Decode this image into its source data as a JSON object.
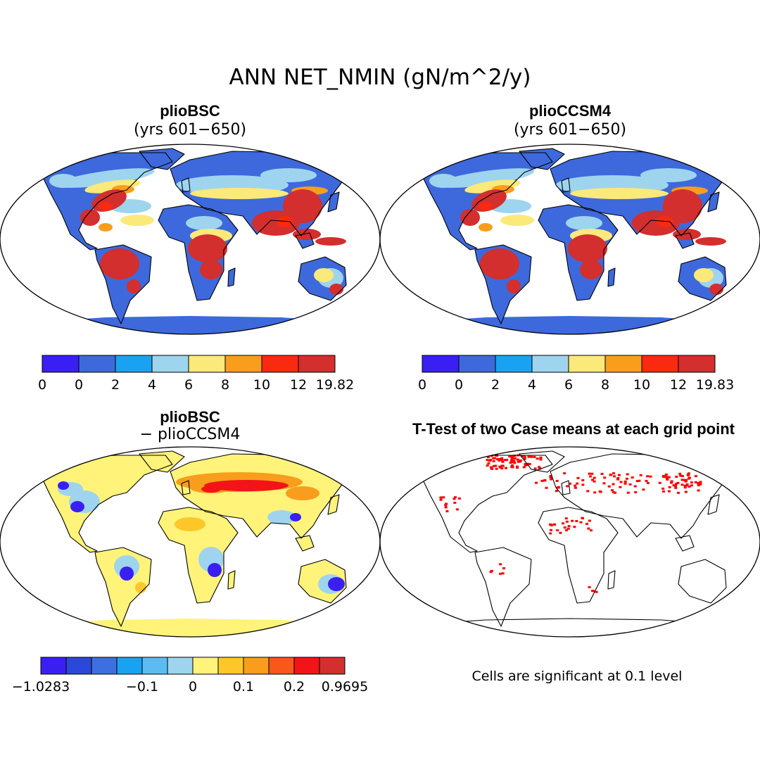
{
  "title": "ANN NET_NMIN (gN/m^2/y)",
  "panels": {
    "tl": {
      "label": "plioBSC",
      "sub": "(yrs 601−650)"
    },
    "tr": {
      "label": "plioCCSM4",
      "sub": "(yrs 601−650)"
    },
    "bl": {
      "label": "plioBSC",
      "sub": "− plioCCSM4"
    },
    "br": {
      "label": "T-Test of two Case means at each grid point"
    }
  },
  "colorbars": {
    "top_left": {
      "colors": [
        "#3a1ff2",
        "#3e69dc",
        "#1aa2f2",
        "#9ed4ee",
        "#fbe97a",
        "#f99d1c",
        "#f82a10",
        "#d22f2e"
      ],
      "labels": [
        "0",
        "0",
        "2",
        "4",
        "6",
        "8",
        "10",
        "12",
        "19.82"
      ]
    },
    "top_right": {
      "colors": [
        "#3a1ff2",
        "#3e69dc",
        "#1aa2f2",
        "#9ed4ee",
        "#fbe97a",
        "#f99d1c",
        "#f82a10",
        "#d22f2e"
      ],
      "labels": [
        "0",
        "0",
        "2",
        "4",
        "6",
        "8",
        "10",
        "12",
        "19.83"
      ]
    },
    "bottom_left": {
      "colors": [
        "#3a1ff2",
        "#2c48d8",
        "#3e6fe0",
        "#1aa2f2",
        "#5cbcf2",
        "#9ed4ee",
        "#fff37a",
        "#fdc72a",
        "#f99d1c",
        "#f8581a",
        "#f21418",
        "#d22f2e"
      ],
      "labels": [
        "−1.0283",
        "−0.1",
        "0",
        "0.1",
        "0.2",
        "0.9695"
      ]
    }
  },
  "map_colors": {
    "ocean": "#ffffff",
    "coast": "#000000",
    "low": "#3e69dc",
    "mid": "#9ed4ee",
    "yellow": "#fbe97a",
    "high": "#d22f2e",
    "diff_pos": "#fff37a",
    "diff_neg": "#3a1ff2",
    "signif": "#ff0000"
  },
  "footnote": "Cells are significant at 0.1 level"
}
